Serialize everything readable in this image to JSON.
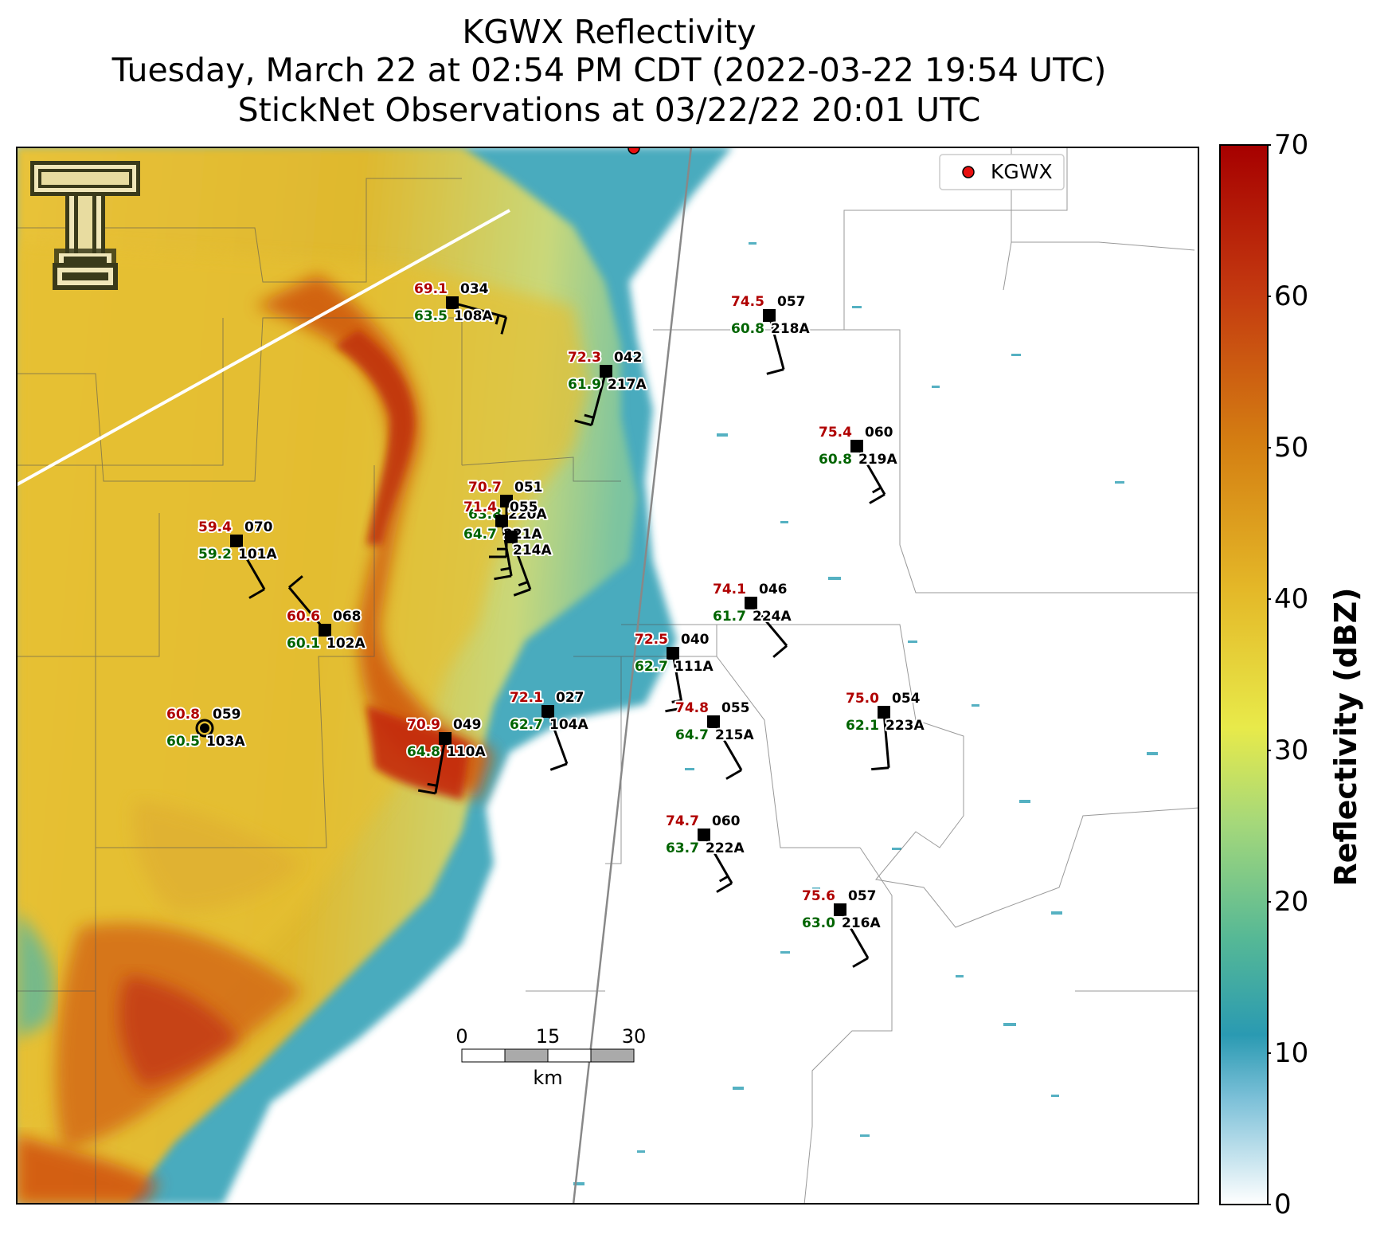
{
  "title": {
    "line1": "KGWX Reflectivity",
    "line2": "Tuesday, March 22 at 02:54 PM CDT (2022-03-22 19:54 UTC)",
    "line3": "StickNet Observations at 03/22/22 20:01 UTC"
  },
  "legend": {
    "label": "KGWX",
    "marker_color": "#e81010",
    "position": "upper-right"
  },
  "radar_site": {
    "name": "KGWX"
  },
  "colorbar": {
    "label": "Reflectivity (dBZ)",
    "ticks": [
      "70",
      "60",
      "50",
      "40",
      "30",
      "20",
      "10",
      "0"
    ],
    "range": [
      0,
      70
    ]
  },
  "scalebar": {
    "labels": [
      "0",
      "15",
      "30"
    ],
    "unit": "km"
  },
  "logo": "texas-tech-double-t-logo",
  "colors": {
    "temperature": "#b00000",
    "dewpoint": "#006400",
    "id": "#000000"
  },
  "stations": [
    {
      "id": "108A",
      "temp": "69.1",
      "dew": "63.5",
      "pres": "034",
      "wind_dir": 105,
      "wind_kt": 15
    },
    {
      "id": "217A",
      "temp": "72.3",
      "dew": "61.9",
      "pres": "042",
      "wind_dir": 195,
      "wind_kt": 15
    },
    {
      "id": "218A",
      "temp": "74.5",
      "dew": "60.8",
      "pres": "057",
      "wind_dir": 165,
      "wind_kt": 10
    },
    {
      "id": "219A",
      "temp": "75.4",
      "dew": "60.8",
      "pres": "060",
      "wind_dir": 150,
      "wind_kt": 15
    },
    {
      "id": "101A",
      "temp": "59.4",
      "dew": "59.2",
      "pres": "070",
      "wind_dir": 150,
      "wind_kt": 10
    },
    {
      "id": "102A",
      "temp": "60.6",
      "dew": "60.1",
      "pres": "068",
      "wind_dir": 320,
      "wind_kt": 10
    },
    {
      "id": "224A",
      "temp": "74.1",
      "dew": "61.7",
      "pres": "046",
      "wind_dir": 140,
      "wind_kt": 10
    },
    {
      "id": "111A",
      "temp": "72.5",
      "dew": "62.7",
      "pres": "040",
      "wind_dir": 170,
      "wind_kt": 15
    },
    {
      "id": "104A",
      "temp": "72.1",
      "dew": "62.7",
      "pres": "027",
      "wind_dir": 160,
      "wind_kt": 10
    },
    {
      "id": "215A",
      "temp": "74.8",
      "dew": "64.7",
      "pres": "055",
      "wind_dir": 150,
      "wind_kt": 10
    },
    {
      "id": "223A",
      "temp": "75.0",
      "dew": "62.1",
      "pres": "054",
      "wind_dir": 175,
      "wind_kt": 10
    },
    {
      "id": "110A",
      "temp": "70.9",
      "dew": "64.8",
      "pres": "049",
      "wind_dir": 190,
      "wind_kt": 15
    },
    {
      "id": "103A",
      "temp": "60.8",
      "dew": "60.5",
      "pres": "059",
      "wind_dir": 0,
      "wind_kt": 0
    },
    {
      "id": "222A",
      "temp": "74.7",
      "dew": "63.7",
      "pres": "060",
      "wind_dir": 150,
      "wind_kt": 15
    },
    {
      "id": "216A",
      "temp": "75.6",
      "dew": "63.0",
      "pres": "057",
      "wind_dir": 150,
      "wind_kt": 10
    },
    {
      "id": "220A",
      "temp": "70.7",
      "dew": "63.8",
      "pres": "051",
      "wind_dir": 180,
      "wind_kt": 15
    },
    {
      "id": "221A",
      "temp": "71.4",
      "dew": "64.7",
      "pres": "055",
      "wind_dir": 170,
      "wind_kt": 15
    },
    {
      "id": "214A",
      "temp": "",
      "dew": "",
      "pres": "",
      "wind_dir": 160,
      "wind_kt": 15
    }
  ]
}
